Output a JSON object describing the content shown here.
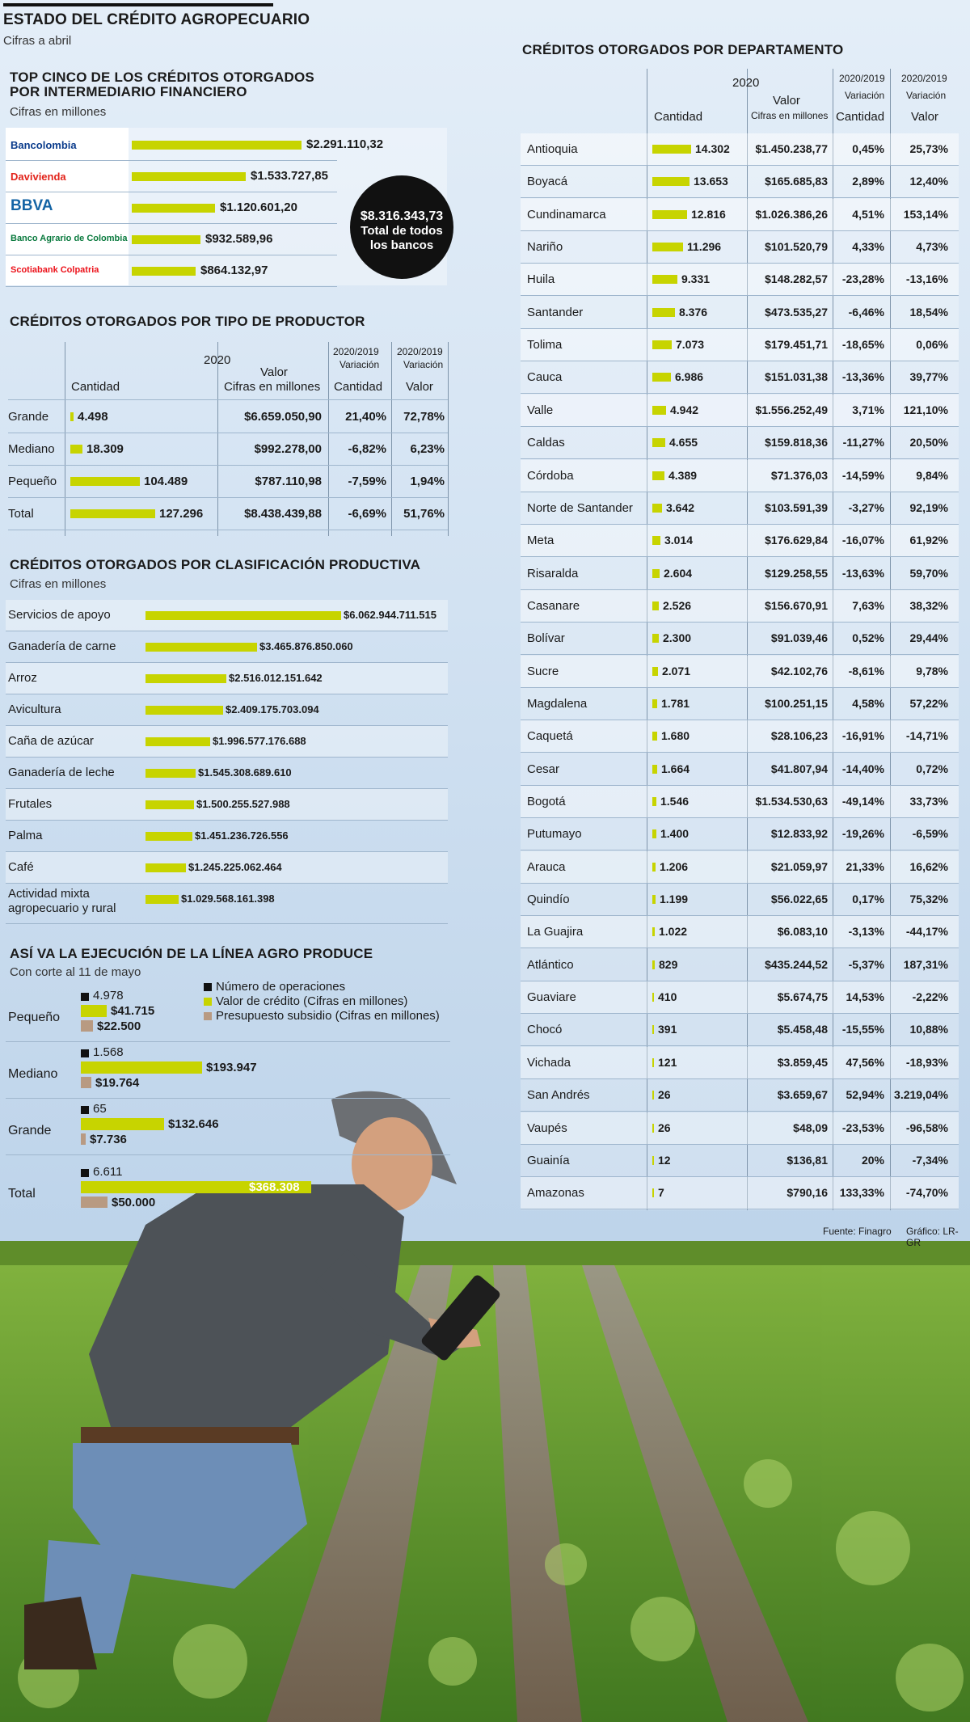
{
  "header": {
    "title": "ESTADO DEL CRÉDITO AGROPECUARIO",
    "subtitle": "Cifras a abril"
  },
  "top_banks": {
    "title_line1": "TOP CINCO DE LOS CRÉDITOS OTORGADOS",
    "title_line2": "POR INTERMEDIARIO FINANCIERO",
    "subtitle": "Cifras en millones",
    "total_value": "$8.316.343,73",
    "total_label_1": "Total de todos",
    "total_label_2": "los bancos",
    "logo_colors": {
      "bancolombia": "#0b3c8c",
      "davivienda": "#e2231a",
      "bbva": "#1464a5",
      "agrario": "#0a7a3e",
      "scotiabank": "#ec111a",
      "colpatria": "#d7141a"
    }
  },
  "productor": {
    "title": "CRÉDITOS OTORGADOS POR TIPO DE PRODUCTOR",
    "col_year": "2020",
    "col_valor": "Valor",
    "col_valor_sub": "Cifras en millones",
    "col_cantidad": "Cantidad",
    "col_var_head": "2020/2019",
    "col_var_sub": "Variación",
    "col_var_cant": "Cantidad",
    "col_var_valor": "Valor"
  },
  "clasificacion": {
    "title": "CRÉDITOS OTORGADOS POR CLASIFICACIÓN PRODUCTIVA",
    "subtitle": "Cifras en millones",
    "last_label_line1": "Actividad mixta",
    "last_label_line2": "agropecuario y rural"
  },
  "agro": {
    "title": "ASÍ VA LA EJECUCIÓN DE LA LÍNEA AGRO PRODUCE",
    "subtitle": "Con corte al 11 de mayo",
    "legend": [
      "Número de operaciones",
      "Valor de crédito (Cifras en millones)",
      "Presupuesto subsidio (Cifras en millones)"
    ],
    "colors": {
      "ops": "#111111",
      "credito": "#c7d400",
      "subsidio": "#b89a82"
    }
  },
  "departamento": {
    "title": "CRÉDITOS OTORGADOS POR DEPARTAMENTO",
    "col_year": "2020",
    "col_valor": "Valor",
    "col_valor_sub": "Cifras en millones",
    "col_cantidad": "Cantidad",
    "col_var_head": "2020/2019",
    "col_var_sub": "Variación",
    "col_var_cant": "Cantidad",
    "col_var_valor": "Valor"
  },
  "footer": {
    "source": "Fuente: Finagro",
    "credit": "Gráfico: LR-GR"
  },
  "chart_data": [
    {
      "type": "bar",
      "id": "bancos",
      "categories": [
        "Bancolombia",
        "Davivienda",
        "BBVA",
        "Banco Agrario de Colombia",
        "Scotiabank Colpatria"
      ],
      "labels": [
        "$2.291.110,32",
        "$1.533.727,85",
        "$1.120.601,20",
        "$932.589,96",
        "$864.132,97"
      ],
      "values": [
        2291110.32,
        1533727.85,
        1120601.2,
        932589.96,
        864132.97
      ]
    },
    {
      "type": "table",
      "id": "productor",
      "rows": [
        {
          "name": "Grande",
          "cantidad": 4498,
          "cantidad_label": "4.498",
          "valor": "$6.659.050,90",
          "var_cant": "21,40%",
          "var_valor": "72,78%"
        },
        {
          "name": "Mediano",
          "cantidad": 18309,
          "cantidad_label": "18.309",
          "valor": "$992.278,00",
          "var_cant": "-6,82%",
          "var_valor": "6,23%"
        },
        {
          "name": "Pequeño",
          "cantidad": 104489,
          "cantidad_label": "104.489",
          "valor": "$787.110,98",
          "var_cant": "-7,59%",
          "var_valor": "1,94%"
        },
        {
          "name": "Total",
          "cantidad": 127296,
          "cantidad_label": "127.296",
          "valor": "$8.438.439,88",
          "var_cant": "-6,69%",
          "var_valor": "51,76%"
        }
      ]
    },
    {
      "type": "bar",
      "id": "clasificacion",
      "categories": [
        "Servicios de apoyo",
        "Ganadería de carne",
        "Arroz",
        "Avicultura",
        "Caña de azúcar",
        "Ganadería de leche",
        "Frutales",
        "Palma",
        "Café",
        "Actividad mixta agropecuario y rural"
      ],
      "labels": [
        "$6.062.944.711.515",
        "$3.465.876.850.060",
        "$2.516.012.151.642",
        "$2.409.175.703.094",
        "$1.996.577.176.688",
        "$1.545.308.689.610",
        "$1.500.255.527.988",
        "$1.451.236.726.556",
        "$1.245.225.062.464",
        "$1.029.568.161.398"
      ],
      "values": [
        6062944711515,
        3465876850060,
        2516012151642,
        2409175703094,
        1996577176688,
        1545308689610,
        1500255527988,
        1451236726556,
        1245225062464,
        1029568161398
      ]
    },
    {
      "type": "bar",
      "id": "agro",
      "categories": [
        "Pequeño",
        "Mediano",
        "Grande",
        "Total"
      ],
      "series": [
        {
          "name": "Número de operaciones",
          "values": [
            4978,
            1568,
            65,
            6611
          ],
          "labels": [
            "4.978",
            "1.568",
            "65",
            "6.611"
          ]
        },
        {
          "name": "Valor de crédito (Cifras en millones)",
          "values": [
            41715,
            193947,
            132646,
            368308
          ],
          "labels": [
            "$41.715",
            "$193.947",
            "$132.646",
            "$368.308"
          ]
        },
        {
          "name": "Presupuesto subsidio (Cifras en millones)",
          "values": [
            22500,
            19764,
            7736,
            50000
          ],
          "labels": [
            "$22.500",
            "$19.764",
            "$7.736",
            "$50.000"
          ]
        }
      ]
    },
    {
      "type": "table",
      "id": "departamento",
      "rows": [
        {
          "name": "Antioquia",
          "cantidad": 14302,
          "cantidad_label": "14.302",
          "valor": "$1.450.238,77",
          "var_cant": "0,45%",
          "var_valor": "25,73%"
        },
        {
          "name": "Boyacá",
          "cantidad": 13653,
          "cantidad_label": "13.653",
          "valor": "$165.685,83",
          "var_cant": "2,89%",
          "var_valor": "12,40%"
        },
        {
          "name": "Cundinamarca",
          "cantidad": 12816,
          "cantidad_label": "12.816",
          "valor": "$1.026.386,26",
          "var_cant": "4,51%",
          "var_valor": "153,14%"
        },
        {
          "name": "Nariño",
          "cantidad": 11296,
          "cantidad_label": "11.296",
          "valor": "$101.520,79",
          "var_cant": "4,33%",
          "var_valor": "4,73%"
        },
        {
          "name": "Huila",
          "cantidad": 9331,
          "cantidad_label": "9.331",
          "valor": "$148.282,57",
          "var_cant": "-23,28%",
          "var_valor": "-13,16%"
        },
        {
          "name": "Santander",
          "cantidad": 8376,
          "cantidad_label": "8.376",
          "valor": "$473.535,27",
          "var_cant": "-6,46%",
          "var_valor": "18,54%"
        },
        {
          "name": "Tolima",
          "cantidad": 7073,
          "cantidad_label": "7.073",
          "valor": "$179.451,71",
          "var_cant": "-18,65%",
          "var_valor": "0,06%"
        },
        {
          "name": "Cauca",
          "cantidad": 6986,
          "cantidad_label": "6.986",
          "valor": "$151.031,38",
          "var_cant": "-13,36%",
          "var_valor": "39,77%"
        },
        {
          "name": "Valle",
          "cantidad": 4942,
          "cantidad_label": "4.942",
          "valor": "$1.556.252,49",
          "var_cant": "3,71%",
          "var_valor": "121,10%"
        },
        {
          "name": "Caldas",
          "cantidad": 4655,
          "cantidad_label": "4.655",
          "valor": "$159.818,36",
          "var_cant": "-11,27%",
          "var_valor": "20,50%"
        },
        {
          "name": "Córdoba",
          "cantidad": 4389,
          "cantidad_label": "4.389",
          "valor": "$71.376,03",
          "var_cant": "-14,59%",
          "var_valor": "9,84%"
        },
        {
          "name": "Norte de Santander",
          "cantidad": 3642,
          "cantidad_label": "3.642",
          "valor": "$103.591,39",
          "var_cant": "-3,27%",
          "var_valor": "92,19%"
        },
        {
          "name": "Meta",
          "cantidad": 3014,
          "cantidad_label": "3.014",
          "valor": "$176.629,84",
          "var_cant": "-16,07%",
          "var_valor": "61,92%"
        },
        {
          "name": "Risaralda",
          "cantidad": 2604,
          "cantidad_label": "2.604",
          "valor": "$129.258,55",
          "var_cant": "-13,63%",
          "var_valor": "59,70%"
        },
        {
          "name": "Casanare",
          "cantidad": 2526,
          "cantidad_label": "2.526",
          "valor": "$156.670,91",
          "var_cant": "7,63%",
          "var_valor": "38,32%"
        },
        {
          "name": "Bolívar",
          "cantidad": 2300,
          "cantidad_label": "2.300",
          "valor": "$91.039,46",
          "var_cant": "0,52%",
          "var_valor": "29,44%"
        },
        {
          "name": "Sucre",
          "cantidad": 2071,
          "cantidad_label": "2.071",
          "valor": "$42.102,76",
          "var_cant": "-8,61%",
          "var_valor": "9,78%"
        },
        {
          "name": "Magdalena",
          "cantidad": 1781,
          "cantidad_label": "1.781",
          "valor": "$100.251,15",
          "var_cant": "4,58%",
          "var_valor": "57,22%"
        },
        {
          "name": "Caquetá",
          "cantidad": 1680,
          "cantidad_label": "1.680",
          "valor": "$28.106,23",
          "var_cant": "-16,91%",
          "var_valor": "-14,71%"
        },
        {
          "name": "Cesar",
          "cantidad": 1664,
          "cantidad_label": "1.664",
          "valor": "$41.807,94",
          "var_cant": "-14,40%",
          "var_valor": "0,72%"
        },
        {
          "name": "Bogotá",
          "cantidad": 1546,
          "cantidad_label": "1.546",
          "valor": "$1.534.530,63",
          "var_cant": "-49,14%",
          "var_valor": "33,73%"
        },
        {
          "name": "Putumayo",
          "cantidad": 1400,
          "cantidad_label": "1.400",
          "valor": "$12.833,92",
          "var_cant": "-19,26%",
          "var_valor": "-6,59%"
        },
        {
          "name": "Arauca",
          "cantidad": 1206,
          "cantidad_label": "1.206",
          "valor": "$21.059,97",
          "var_cant": "21,33%",
          "var_valor": "16,62%"
        },
        {
          "name": "Quindío",
          "cantidad": 1199,
          "cantidad_label": "1.199",
          "valor": "$56.022,65",
          "var_cant": "0,17%",
          "var_valor": "75,32%"
        },
        {
          "name": "La Guajira",
          "cantidad": 1022,
          "cantidad_label": "1.022",
          "valor": "$6.083,10",
          "var_cant": "-3,13%",
          "var_valor": "-44,17%"
        },
        {
          "name": "Atlántico",
          "cantidad": 829,
          "cantidad_label": "829",
          "valor": "$435.244,52",
          "var_cant": "-5,37%",
          "var_valor": "187,31%"
        },
        {
          "name": "Guaviare",
          "cantidad": 410,
          "cantidad_label": "410",
          "valor": "$5.674,75",
          "var_cant": "14,53%",
          "var_valor": "-2,22%"
        },
        {
          "name": "Chocó",
          "cantidad": 391,
          "cantidad_label": "391",
          "valor": "$5.458,48",
          "var_cant": "-15,55%",
          "var_valor": "10,88%"
        },
        {
          "name": "Vichada",
          "cantidad": 121,
          "cantidad_label": "121",
          "valor": "$3.859,45",
          "var_cant": "47,56%",
          "var_valor": "-18,93%"
        },
        {
          "name": "San Andrés",
          "cantidad": 26,
          "cantidad_label": "26",
          "valor": "$3.659,67",
          "var_cant": "52,94%",
          "var_valor": "3.219,04%"
        },
        {
          "name": "Vaupés",
          "cantidad": 26,
          "cantidad_label": "26",
          "valor": "$48,09",
          "var_cant": "-23,53%",
          "var_valor": "-96,58%"
        },
        {
          "name": "Guainía",
          "cantidad": 12,
          "cantidad_label": "12",
          "valor": "$136,81",
          "var_cant": "20%",
          "var_valor": "-7,34%"
        },
        {
          "name": "Amazonas",
          "cantidad": 7,
          "cantidad_label": "7",
          "valor": "$790,16",
          "var_cant": "133,33%",
          "var_valor": "-74,70%"
        }
      ]
    }
  ]
}
